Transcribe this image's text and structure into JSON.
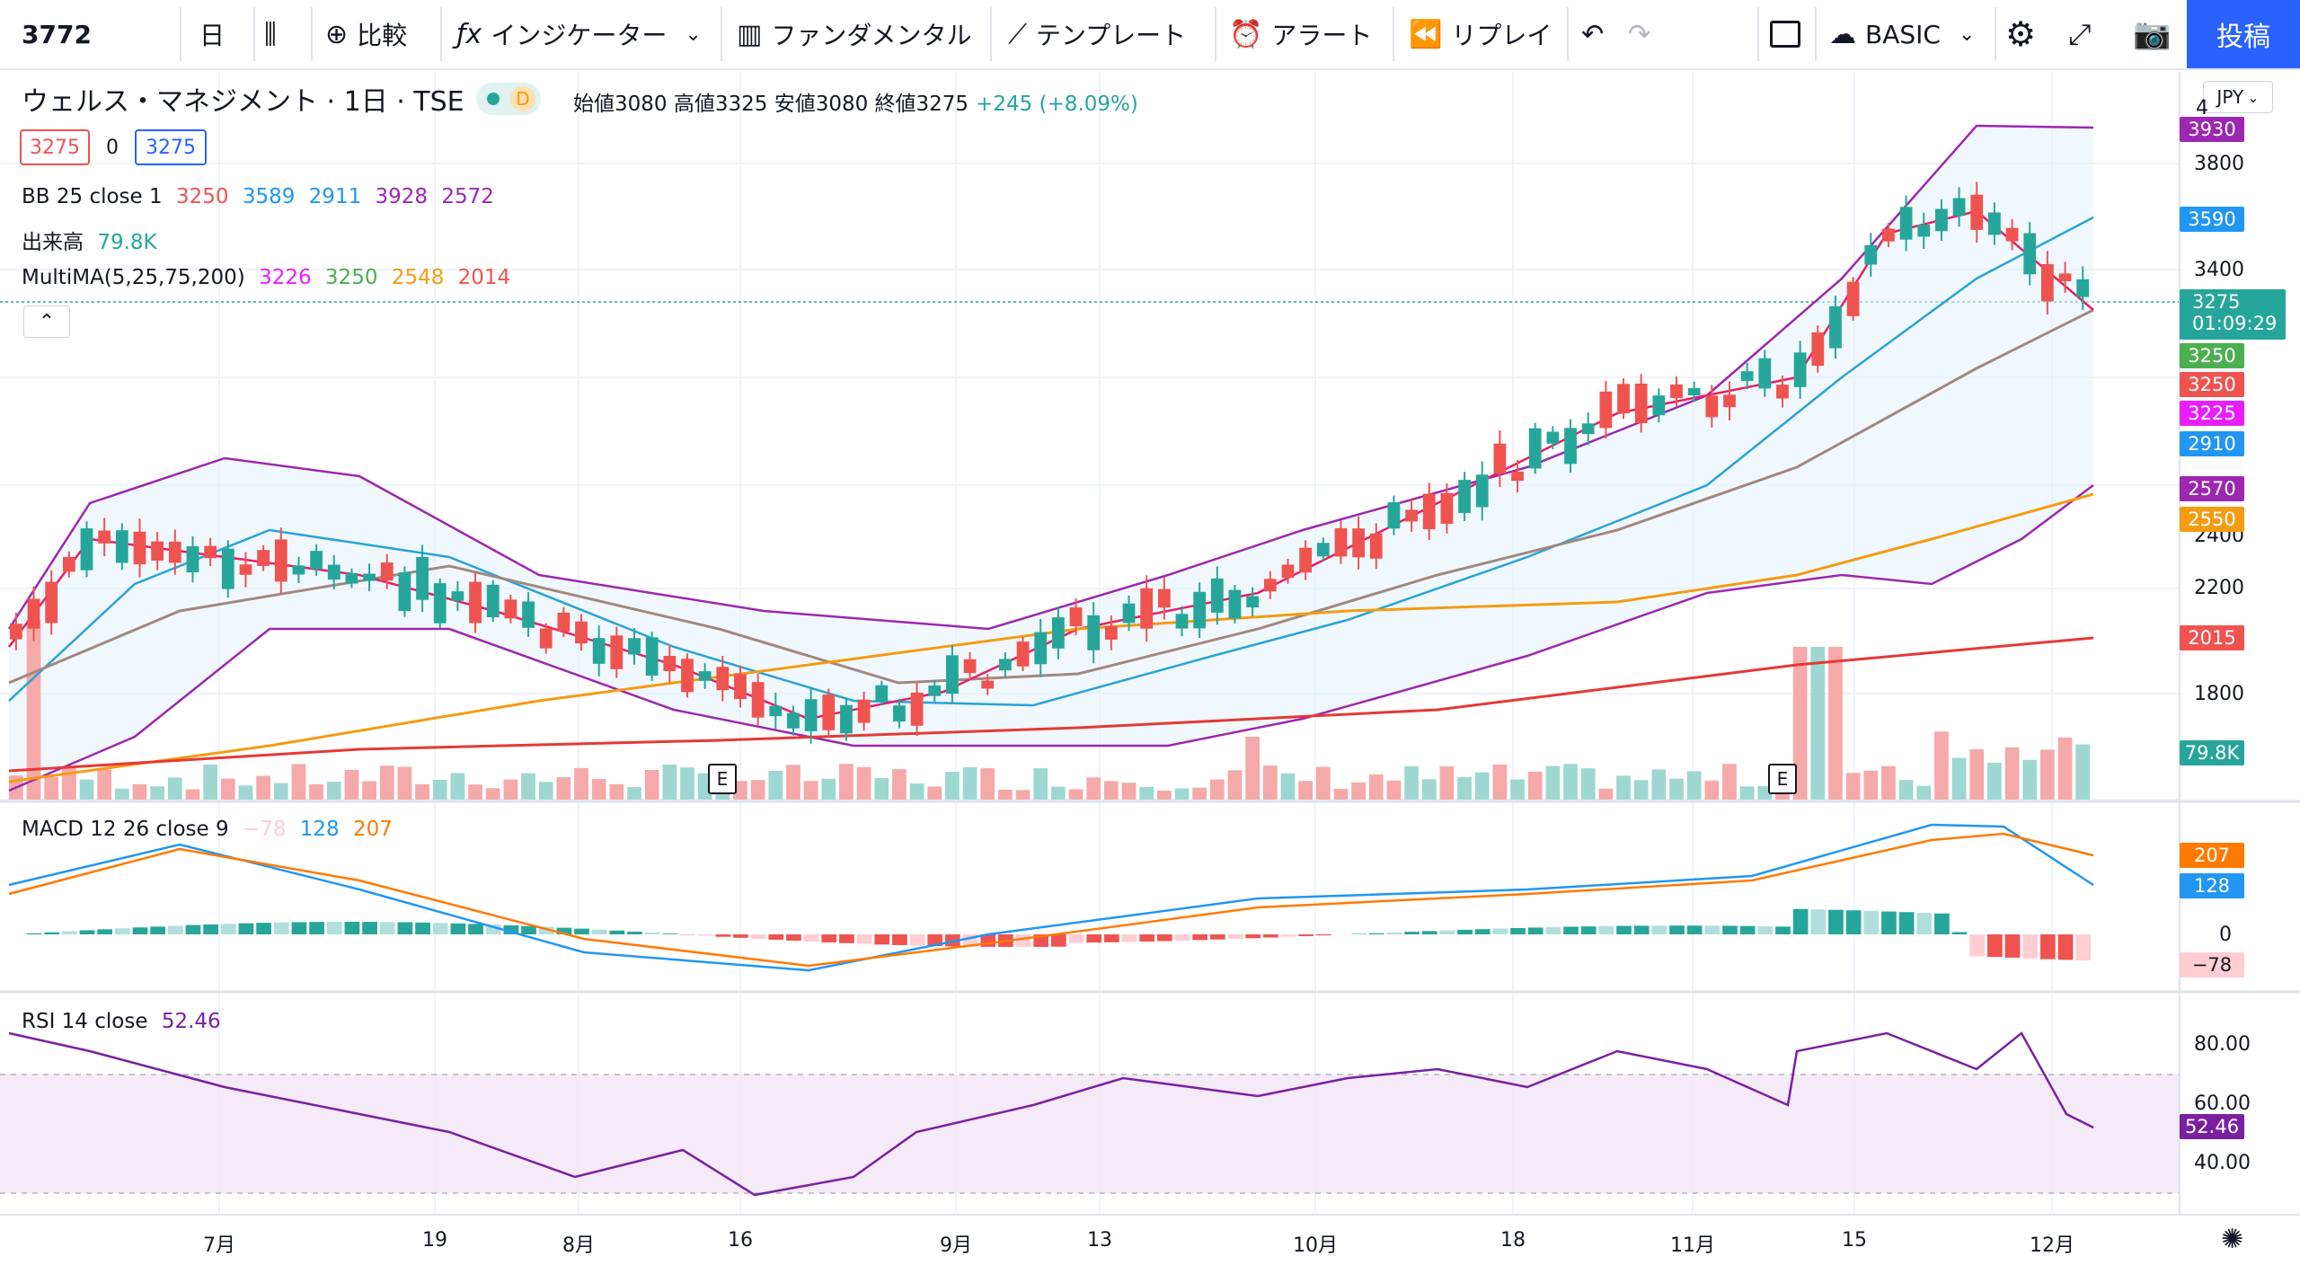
{
  "toolbar": {
    "symbol": "3772",
    "interval": "日",
    "compare": "比較",
    "indicators": "インジケーター",
    "fundamentals": "ファンダメンタル",
    "templates": "テンプレート",
    "alert": "アラート",
    "replay": "リプレイ",
    "layout_name": "BASIC",
    "post": "投稿"
  },
  "legend": {
    "title": "ウェルス・マネジメント · 1日 · TSE",
    "badge": "D",
    "ohlc_text": "始値3080 高値3325 安値3080 終値3275",
    "change": "+245 (+8.09%)",
    "sell_price": "3275",
    "spread": "0",
    "buy_price": "3275",
    "bb_label": "BB 25 close 1",
    "bb_values": [
      "3250",
      "3589",
      "2911",
      "3928",
      "2572"
    ],
    "volume_label": "出来高",
    "volume_value": "79.8K",
    "ma_label": "MultiMA(5,25,75,200)",
    "ma_values": [
      "3226",
      "3250",
      "2548",
      "2014"
    ],
    "collapse_icon": "chevron-up-icon",
    "macd_label": "MACD 12 26 close 9",
    "macd_values": [
      "−78",
      "128",
      "207"
    ],
    "rsi_label": "RSI 14 close",
    "rsi_value": "52.46"
  },
  "currency": "JPY",
  "price_axis": [
    "3800",
    "3400",
    "2400",
    "2200",
    "1800"
  ],
  "price_axis_top_partial": "4",
  "price_labels": [
    {
      "text": "3930",
      "color": "#9c27b0"
    },
    {
      "text": "3590",
      "color": "#2196f3"
    },
    {
      "text": "3275",
      "color": "#26a69a"
    },
    {
      "text": "01:09:29",
      "color": "#26a69a"
    },
    {
      "text": "3250",
      "color": "#4caf50"
    },
    {
      "text": "3250",
      "color": "#ef5350"
    },
    {
      "text": "3225",
      "color": "#e91eff"
    },
    {
      "text": "2910",
      "color": "#2196f3"
    },
    {
      "text": "2570",
      "color": "#9c27b0"
    },
    {
      "text": "2550",
      "color": "#f39c12"
    },
    {
      "text": "2015",
      "color": "#ef5350"
    },
    {
      "text": "79.8K",
      "color": "#26a69a"
    }
  ],
  "macd_axis": {
    "zero": "0",
    "labels": [
      {
        "text": "207",
        "color": "#ff7a00"
      },
      {
        "text": "128",
        "color": "#2196f3"
      },
      {
        "text": "−78",
        "color": "#ffcdd2"
      }
    ]
  },
  "rsi_axis": {
    "ticks": [
      "80.00",
      "60.00",
      "40.00"
    ],
    "current": "52.46"
  },
  "x_axis": [
    "7月",
    "19",
    "8月",
    "16",
    "9月",
    "13",
    "10月",
    "18",
    "11月",
    "15",
    "12月"
  ],
  "earnings_marker": "E",
  "colors": {
    "up": "#26a69a",
    "down": "#ef5350",
    "bb": "#9c27b0",
    "ma5": "#e91e63",
    "ma25": "#a1887f",
    "ma75": "#f39c12",
    "ma200": "#e53935",
    "macd": "#2196f3",
    "signal": "#ff7a00",
    "rsi": "#7b1fa2"
  }
}
